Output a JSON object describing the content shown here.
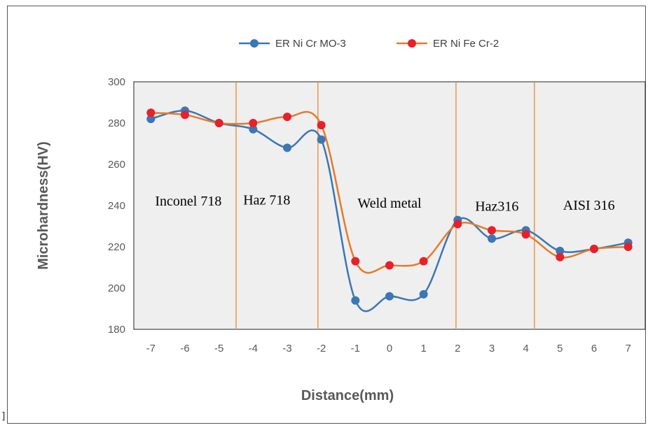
{
  "chart_data": {
    "type": "line",
    "title": "",
    "xlabel": "Distance(mm)",
    "ylabel": "Microhardness(HV)",
    "x": [
      -7,
      -6,
      -5,
      -4,
      -3,
      -2,
      -1,
      0,
      1,
      2,
      3,
      4,
      5,
      6,
      7
    ],
    "ylim": [
      180,
      300
    ],
    "yticks": [
      180,
      200,
      220,
      240,
      260,
      280,
      300
    ],
    "grid": false,
    "legend_position": "top",
    "plot_background": "#efefef",
    "series": [
      {
        "name": "ER Ni Cr MO-3",
        "color": "#3a77b5",
        "values": [
          282,
          286,
          280,
          277,
          268,
          272,
          194,
          196,
          197,
          233,
          224,
          228,
          218,
          219,
          222
        ]
      },
      {
        "name": "ER Ni Fe Cr-2",
        "color": "#e8202a",
        "line_color": "#e87a2a",
        "values": [
          285,
          284,
          280,
          280,
          283,
          279,
          213,
          211,
          213,
          231,
          228,
          226,
          215,
          219,
          220
        ]
      }
    ],
    "boundaries": [
      -4.5,
      -2.1,
      1.95,
      4.25
    ],
    "boundary_color": "#e8974a",
    "regions": [
      {
        "label": "Inconel 718",
        "x": -5.9,
        "y": 240
      },
      {
        "label": "Haz 718",
        "x": -3.6,
        "y": 240.5
      },
      {
        "label": "Weld metal",
        "x": 0,
        "y": 239
      },
      {
        "label": "Haz316",
        "x": 3.15,
        "y": 237.5
      },
      {
        "label": "AISI 316",
        "x": 5.85,
        "y": 238
      }
    ]
  },
  "stray_mark": "]"
}
